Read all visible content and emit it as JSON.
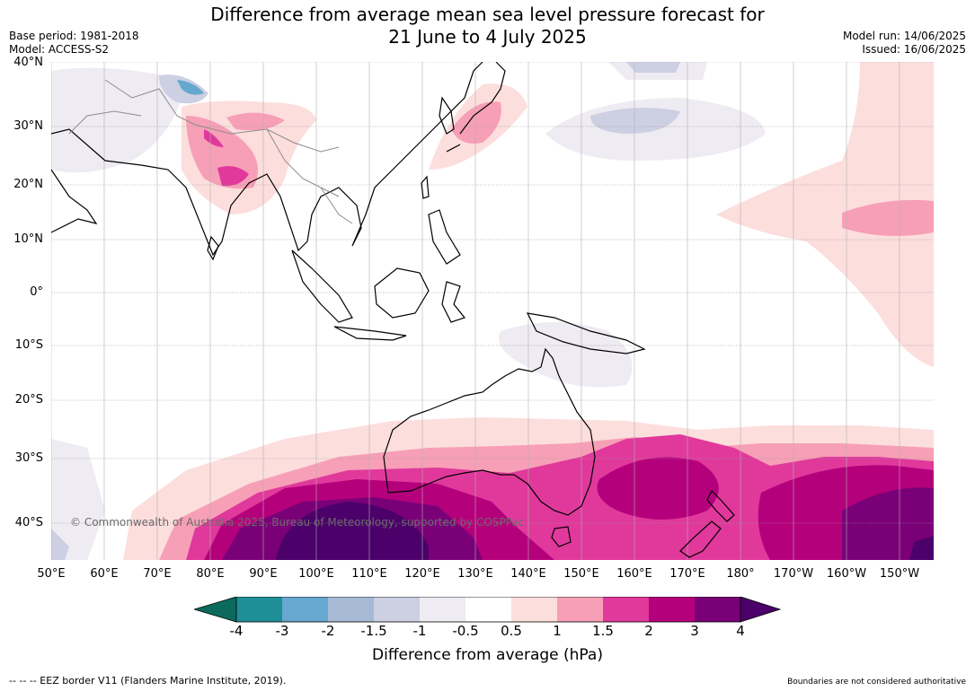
{
  "title": {
    "line1": "Difference from average mean sea level pressure forecast for",
    "line2": "21 June to 4 July 2025"
  },
  "meta_left": {
    "base_period": "Base period: 1981-2018",
    "model": "Model: ACCESS-S2"
  },
  "meta_right": {
    "model_run": "Model run: 14/06/2025",
    "issued": "Issued: 16/06/2025"
  },
  "map": {
    "lat_labels": [
      "40°N",
      "30°N",
      "20°N",
      "10°N",
      "0°",
      "10°S",
      "20°S",
      "30°S",
      "40°S"
    ],
    "lon_labels": [
      "50°E",
      "60°E",
      "70°E",
      "80°E",
      "90°E",
      "100°E",
      "110°E",
      "120°E",
      "130°E",
      "140°E",
      "150°E",
      "160°E",
      "170°E",
      "180°",
      "170°W",
      "160°W",
      "150°W"
    ],
    "copyright": "© Commonwealth of Australia 2025, Bureau of Meteorology, supported by COSPPac"
  },
  "colorbar": {
    "ticks": [
      "-4",
      "-3",
      "-2",
      "-1.5",
      "-1",
      "-0.5",
      "0.5",
      "1",
      "1.5",
      "2",
      "3",
      "4"
    ],
    "colors": {
      "below_-4": "#0a6a5c",
      "-4_-3": "#1e8f97",
      "-3_-2": "#66a8cf",
      "-2_-1.5": "#a6bad5",
      "-1.5_-1": "#cdcfe3",
      "-1_-0.5": "#efebf3",
      "-0.5_0.5": "#ffffff",
      "0.5_1": "#fcdedd",
      "1_1.5": "#f79fb6",
      "1.5_2": "#e0399b",
      "2_3": "#b5007c",
      "3_4": "#7a0078",
      "above_4": "#4b006a"
    },
    "label": "Difference from average (hPa)"
  },
  "footer": {
    "left": "--  --  -- EEZ border V11 (Flanders Marine Institute, 2019).",
    "right": "Boundaries are not considered authoritative"
  }
}
